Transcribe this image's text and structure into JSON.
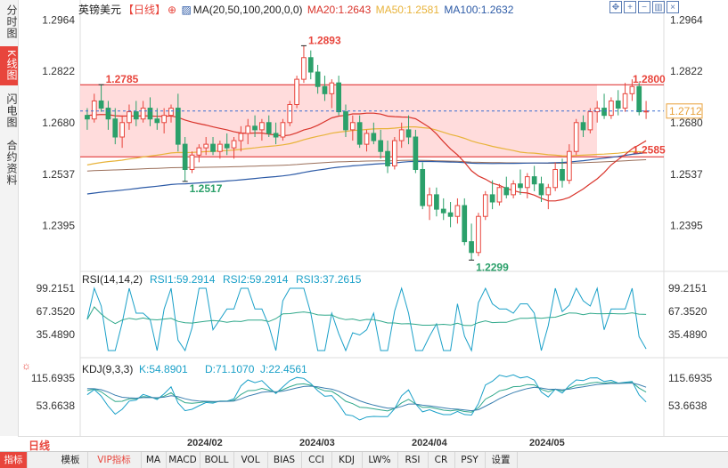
{
  "sidebar": {
    "tabs": [
      {
        "label": "分时图",
        "active": false
      },
      {
        "label": "K线图",
        "active": true
      },
      {
        "label": "闪电图",
        "active": false
      },
      {
        "label": "合约资料",
        "active": false
      }
    ]
  },
  "header": {
    "symbol": "英镑美元",
    "period_tag": "【日线】",
    "ma_label": "MA(20,50,100,200,0,0)",
    "ma20": "MA20:1.2643",
    "ma50": "MA50:1.2581",
    "ma100": "MA100:1.2632",
    "icons": [
      "move-icon",
      "zoom-in-icon",
      "zoom-out-icon",
      "bar-chart-icon",
      "close-icon"
    ]
  },
  "colors": {
    "up": "#e8453c",
    "down": "#2ba06a",
    "ma20": "#d9342b",
    "ma50": "#e8b33a",
    "ma100": "#2c5aa6",
    "ma200": "#9b6f5a",
    "zone": "#ffd6d6",
    "price_line": "#3b6fd0"
  },
  "price_axis": [
    "1.2964",
    "1.2822",
    "1.2680",
    "1.2537",
    "1.2395"
  ],
  "annotations": {
    "high": "1.2893",
    "low": "1.2299",
    "left_high": "1.2785",
    "left_low": "1.2517",
    "resistance": "1.2800",
    "support": "1.2585",
    "current": "1.2712"
  },
  "rsi": {
    "title": "RSI(14,14,2)",
    "rsi1": "RSI1:59.2914",
    "rsi2": "RSI2:59.2914",
    "rsi3": "RSI3:37.2615",
    "axis": [
      "99.2151",
      "67.3520",
      "35.4890"
    ]
  },
  "kdj": {
    "title": "KDJ(9,3,3)",
    "k": "K:54.8901",
    "d": "D:71.1070",
    "j": "J:22.4561",
    "axis": [
      "115.6935",
      "53.6638"
    ]
  },
  "dates": [
    "2024/02",
    "2024/03",
    "2024/04",
    "2024/05"
  ],
  "period_label": "日线",
  "bottom_tabs": [
    "指标",
    "模板",
    "VIP指标",
    "MA",
    "MACD",
    "BOLL",
    "VOL",
    "BIAS",
    "CCI",
    "KDJ",
    "LW%",
    "RSI",
    "CR",
    "PSY",
    "设置"
  ],
  "chart_data": {
    "type": "candlestick",
    "ylim": [
      1.228,
      1.3
    ],
    "candles": [
      [
        1.27,
        1.272,
        1.266,
        1.269
      ],
      [
        1.269,
        1.276,
        1.268,
        1.274
      ],
      [
        1.274,
        1.2785,
        1.271,
        1.272
      ],
      [
        1.272,
        1.274,
        1.266,
        1.269
      ],
      [
        1.269,
        1.272,
        1.262,
        1.264
      ],
      [
        1.264,
        1.27,
        1.261,
        1.268
      ],
      [
        1.268,
        1.273,
        1.266,
        1.271
      ],
      [
        1.271,
        1.274,
        1.267,
        1.269
      ],
      [
        1.269,
        1.274,
        1.268,
        1.272
      ],
      [
        1.272,
        1.275,
        1.267,
        1.269
      ],
      [
        1.269,
        1.272,
        1.266,
        1.268
      ],
      [
        1.268,
        1.272,
        1.265,
        1.27
      ],
      [
        1.27,
        1.273,
        1.268,
        1.272
      ],
      [
        1.272,
        1.276,
        1.26,
        1.262
      ],
      [
        1.262,
        1.264,
        1.2517,
        1.255
      ],
      [
        1.255,
        1.26,
        1.254,
        1.259
      ],
      [
        1.259,
        1.262,
        1.257,
        1.261
      ],
      [
        1.261,
        1.264,
        1.259,
        1.262
      ],
      [
        1.262,
        1.264,
        1.259,
        1.26
      ],
      [
        1.26,
        1.263,
        1.258,
        1.262
      ],
      [
        1.262,
        1.265,
        1.259,
        1.261
      ],
      [
        1.261,
        1.264,
        1.258,
        1.263
      ],
      [
        1.263,
        1.267,
        1.26,
        1.265
      ],
      [
        1.265,
        1.269,
        1.262,
        1.267
      ],
      [
        1.267,
        1.27,
        1.264,
        1.266
      ],
      [
        1.266,
        1.269,
        1.263,
        1.268
      ],
      [
        1.268,
        1.27,
        1.264,
        1.265
      ],
      [
        1.265,
        1.268,
        1.262,
        1.264
      ],
      [
        1.264,
        1.269,
        1.263,
        1.268
      ],
      [
        1.268,
        1.274,
        1.267,
        1.273
      ],
      [
        1.273,
        1.281,
        1.272,
        1.28
      ],
      [
        1.28,
        1.2893,
        1.279,
        1.286
      ],
      [
        1.286,
        1.288,
        1.28,
        1.282
      ],
      [
        1.282,
        1.284,
        1.276,
        1.278
      ],
      [
        1.278,
        1.281,
        1.274,
        1.276
      ],
      [
        1.276,
        1.28,
        1.272,
        1.279
      ],
      [
        1.279,
        1.281,
        1.27,
        1.271
      ],
      [
        1.271,
        1.273,
        1.264,
        1.266
      ],
      [
        1.266,
        1.27,
        1.263,
        1.268
      ],
      [
        1.268,
        1.27,
        1.261,
        1.262
      ],
      [
        1.262,
        1.266,
        1.26,
        1.265
      ],
      [
        1.265,
        1.268,
        1.262,
        1.263
      ],
      [
        1.263,
        1.266,
        1.258,
        1.26
      ],
      [
        1.26,
        1.263,
        1.254,
        1.256
      ],
      [
        1.256,
        1.264,
        1.255,
        1.263
      ],
      [
        1.263,
        1.268,
        1.261,
        1.266
      ],
      [
        1.266,
        1.27,
        1.262,
        1.264
      ],
      [
        1.264,
        1.266,
        1.254,
        1.255
      ],
      [
        1.255,
        1.257,
        1.244,
        1.245
      ],
      [
        1.245,
        1.25,
        1.241,
        1.248
      ],
      [
        1.248,
        1.25,
        1.242,
        1.244
      ],
      [
        1.244,
        1.247,
        1.241,
        1.243
      ],
      [
        1.243,
        1.246,
        1.239,
        1.242
      ],
      [
        1.242,
        1.247,
        1.24,
        1.245
      ],
      [
        1.245,
        1.247,
        1.234,
        1.235
      ],
      [
        1.235,
        1.24,
        1.2299,
        1.232
      ],
      [
        1.232,
        1.243,
        1.231,
        1.242
      ],
      [
        1.242,
        1.249,
        1.241,
        1.248
      ],
      [
        1.248,
        1.252,
        1.244,
        1.246
      ],
      [
        1.246,
        1.251,
        1.245,
        1.25
      ],
      [
        1.25,
        1.253,
        1.247,
        1.248
      ],
      [
        1.248,
        1.252,
        1.247,
        1.251
      ],
      [
        1.251,
        1.255,
        1.248,
        1.25
      ],
      [
        1.25,
        1.254,
        1.247,
        1.253
      ],
      [
        1.253,
        1.256,
        1.249,
        1.251
      ],
      [
        1.251,
        1.253,
        1.246,
        1.248
      ],
      [
        1.248,
        1.251,
        1.244,
        1.25
      ],
      [
        1.25,
        1.257,
        1.249,
        1.255
      ],
      [
        1.255,
        1.258,
        1.25,
        1.252
      ],
      [
        1.252,
        1.262,
        1.251,
        1.26
      ],
      [
        1.26,
        1.269,
        1.259,
        1.268
      ],
      [
        1.268,
        1.27,
        1.264,
        1.266
      ],
      [
        1.266,
        1.272,
        1.265,
        1.271
      ],
      [
        1.271,
        1.274,
        1.268,
        1.272
      ],
      [
        1.272,
        1.276,
        1.269,
        1.27
      ],
      [
        1.27,
        1.275,
        1.269,
        1.274
      ],
      [
        1.274,
        1.277,
        1.27,
        1.272
      ],
      [
        1.272,
        1.279,
        1.271,
        1.276
      ],
      [
        1.276,
        1.28,
        1.274,
        1.278
      ],
      [
        1.278,
        1.279,
        1.27,
        1.271
      ],
      [
        1.271,
        1.274,
        1.269,
        1.2712
      ]
    ]
  }
}
